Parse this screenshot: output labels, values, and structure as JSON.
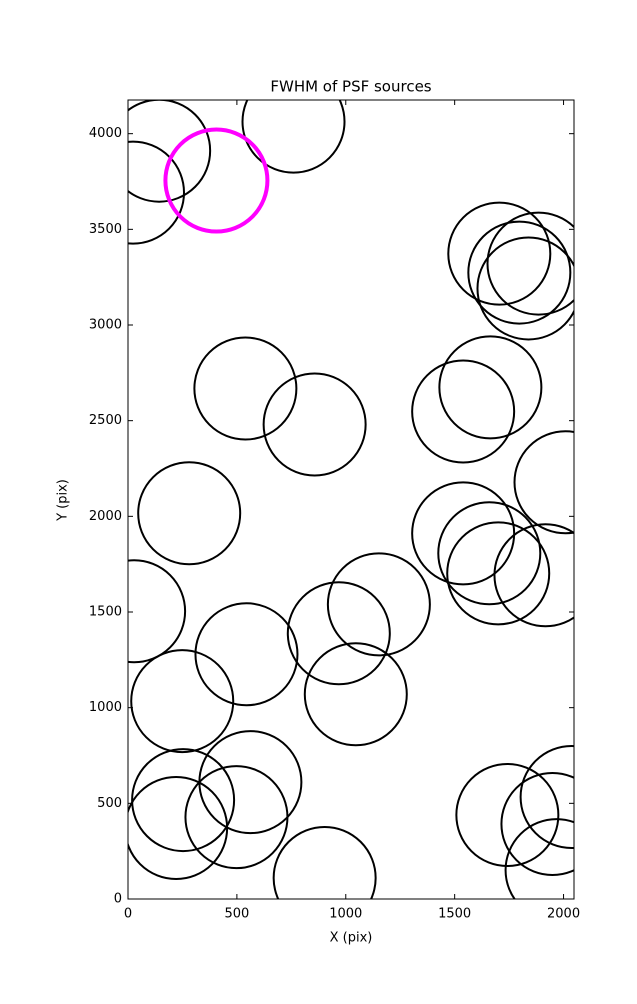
{
  "chart_data": {
    "type": "scatter",
    "title": "FWHM of PSF sources",
    "x_label": "X (pix)",
    "y_label": "Y (pix)",
    "xlim": [
      0,
      2048
    ],
    "ylim": [
      0,
      4176
    ],
    "xticks": [
      0,
      500,
      1000,
      1500,
      2000
    ],
    "yticks": [
      0,
      500,
      1000,
      1500,
      2000,
      2500,
      3000,
      3500,
      4000
    ],
    "grid": false,
    "marker": "open-circle",
    "series": [
      {
        "color": "#000000",
        "linewidth": 2,
        "x": [
          143,
          23,
          760,
          1705,
          1797,
          1839,
          1885,
          539,
          857,
          1664,
          1539,
          2009,
          281,
          1539,
          1659,
          1700,
          1917,
          28,
          1152,
          968,
          544,
          1046,
          249,
          253,
          562,
          498,
          221,
          903,
          1742,
          2037,
          1949,
          1968
        ],
        "values": [
          3911,
          3692,
          4063,
          3373,
          3274,
          3191,
          3321,
          2668,
          2480,
          2674,
          2548,
          2178,
          2016,
          1911,
          1807,
          1702,
          1692,
          1504,
          1540,
          1389,
          1279,
          1070,
          1034,
          517,
          611,
          428,
          371,
          110,
          439,
          533,
          392,
          151
        ]
      },
      {
        "color": "#ff00ff",
        "linewidth": 4,
        "x": [
          406
        ],
        "values": [
          3755
        ]
      }
    ]
  }
}
